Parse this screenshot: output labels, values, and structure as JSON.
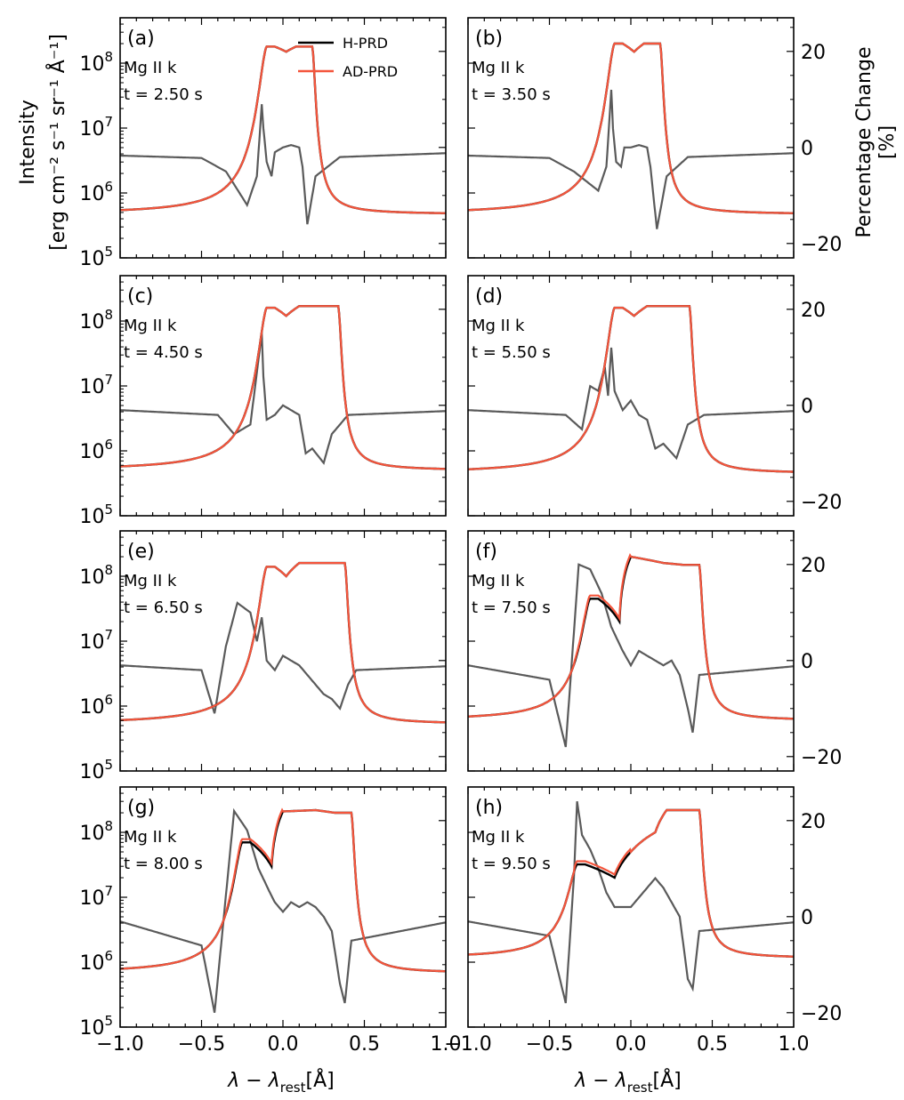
{
  "chart_data": {
    "type": "line",
    "legend": {
      "placement": "top-center of panel (a)",
      "entries": [
        {
          "label": "H-PRD",
          "color": "#000000"
        },
        {
          "label": "AD-PRD",
          "color": "#f4553c"
        }
      ]
    },
    "colors": {
      "h_prd": "#000000",
      "ad_prd": "#f4553c",
      "percent_change": "#5a5a5a"
    },
    "xlabel_main": "λ − λ",
    "xlabel_sub": "rest",
    "xlabel_unit": "[Å]",
    "ylabel_left_line1": "Intensity",
    "ylabel_left_line2": "[erg cm⁻² s⁻¹ sr⁻¹ Å⁻¹]",
    "ylabel_right_line1": "Percentage Change",
    "ylabel_right_line2": "[%]",
    "x_ticks": [
      "−1.0",
      "−0.5",
      "0.0",
      "0.5",
      "1.0"
    ],
    "x_range": [
      -1.0,
      1.0
    ],
    "y_left_scale": "log",
    "y_left_range": [
      100000,
      500000000
    ],
    "y_left_ticks": [
      100000,
      1000000,
      10000000,
      100000000
    ],
    "y_right_range": [
      -23,
      27
    ],
    "y_right_ticks": [
      "−20",
      "0",
      "20"
    ],
    "panels": [
      {
        "label": "(a)",
        "line": "Mg II k",
        "time": "t = 2.50 s",
        "core": [
          [
            -0.05,
            180000000.0
          ],
          [
            0.02,
            150000000.0
          ],
          [
            0.08,
            180000000.0
          ]
        ],
        "cont_left": 470000.0,
        "cont_right": 470000.0,
        "wing_edge": 0.14,
        "pct": [
          [
            -1.0,
            -1.7
          ],
          [
            -0.5,
            -2.2
          ],
          [
            -0.35,
            -5
          ],
          [
            -0.22,
            -12
          ],
          [
            -0.16,
            -6
          ],
          [
            -0.13,
            9
          ],
          [
            -0.12,
            4
          ],
          [
            -0.1,
            -3
          ],
          [
            -0.07,
            -6
          ],
          [
            -0.05,
            -1
          ],
          [
            0.0,
            0
          ],
          [
            0.05,
            0.5
          ],
          [
            0.1,
            0
          ],
          [
            0.12,
            -4
          ],
          [
            0.15,
            -16
          ],
          [
            0.2,
            -6
          ],
          [
            0.35,
            -2
          ],
          [
            1.0,
            -1.2
          ]
        ]
      },
      {
        "label": "(b)",
        "line": "Mg II k",
        "time": "t = 3.50 s",
        "core": [
          [
            -0.05,
            200000000.0
          ],
          [
            0.02,
            150000000.0
          ],
          [
            0.08,
            200000000.0
          ]
        ],
        "cont_left": 470000.0,
        "cont_right": 470000.0,
        "wing_edge": 0.14,
        "pct": [
          [
            -1.0,
            -1.7
          ],
          [
            -0.5,
            -2.2
          ],
          [
            -0.35,
            -5
          ],
          [
            -0.2,
            -9
          ],
          [
            -0.15,
            -4
          ],
          [
            -0.12,
            12
          ],
          [
            -0.11,
            4
          ],
          [
            -0.09,
            -3
          ],
          [
            -0.06,
            -4
          ],
          [
            -0.04,
            0
          ],
          [
            0.0,
            0
          ],
          [
            0.05,
            0.5
          ],
          [
            0.1,
            0
          ],
          [
            0.12,
            -4
          ],
          [
            0.16,
            -17
          ],
          [
            0.22,
            -6
          ],
          [
            0.35,
            -2
          ],
          [
            1.0,
            -1.2
          ]
        ]
      },
      {
        "label": "(c)",
        "line": "Mg II k",
        "time": "t = 4.50 s",
        "core": [
          [
            -0.05,
            160000000.0
          ],
          [
            0.02,
            120000000.0
          ],
          [
            0.1,
            170000000.0
          ]
        ],
        "cont_left": 500000.0,
        "cont_right": 500000.0,
        "wing_edge": 0.3,
        "pct": [
          [
            -1.0,
            -1
          ],
          [
            -0.4,
            -2
          ],
          [
            -0.3,
            -6
          ],
          [
            -0.2,
            -4
          ],
          [
            -0.13,
            15
          ],
          [
            -0.12,
            6
          ],
          [
            -0.1,
            -3
          ],
          [
            -0.05,
            -2
          ],
          [
            0.0,
            0
          ],
          [
            0.05,
            -1
          ],
          [
            0.1,
            -2
          ],
          [
            0.14,
            -10
          ],
          [
            0.18,
            -9
          ],
          [
            0.25,
            -12
          ],
          [
            0.3,
            -6
          ],
          [
            0.4,
            -2
          ],
          [
            1.0,
            -1.2
          ]
        ]
      },
      {
        "label": "(d)",
        "line": "Mg II k",
        "time": "t = 5.50 s",
        "core": [
          [
            -0.05,
            160000000.0
          ],
          [
            0.02,
            120000000.0
          ],
          [
            0.1,
            170000000.0
          ]
        ],
        "cont_left": 450000.0,
        "cont_right": 450000.0,
        "wing_edge": 0.32,
        "pct": [
          [
            -1.0,
            -1
          ],
          [
            -0.4,
            -2
          ],
          [
            -0.3,
            -5
          ],
          [
            -0.25,
            4
          ],
          [
            -0.2,
            3
          ],
          [
            -0.16,
            8
          ],
          [
            -0.14,
            2
          ],
          [
            -0.12,
            12
          ],
          [
            -0.1,
            3
          ],
          [
            -0.05,
            -1
          ],
          [
            0.0,
            1
          ],
          [
            0.05,
            -2
          ],
          [
            0.1,
            -3
          ],
          [
            0.15,
            -9
          ],
          [
            0.2,
            -8
          ],
          [
            0.28,
            -11
          ],
          [
            0.35,
            -4
          ],
          [
            0.45,
            -2
          ],
          [
            1.0,
            -1.2
          ]
        ]
      },
      {
        "label": "(e)",
        "line": "Mg II k",
        "time": "t = 6.50 s",
        "core": [
          [
            -0.05,
            140000000.0
          ],
          [
            0.02,
            100000000.0
          ],
          [
            0.1,
            160000000.0
          ]
        ],
        "cont_left": 530000.0,
        "cont_right": 530000.0,
        "wing_edge": 0.34,
        "pct": [
          [
            -1.0,
            -1
          ],
          [
            -0.5,
            -2
          ],
          [
            -0.42,
            -11
          ],
          [
            -0.35,
            3
          ],
          [
            -0.28,
            12
          ],
          [
            -0.2,
            10
          ],
          [
            -0.16,
            4
          ],
          [
            -0.13,
            9
          ],
          [
            -0.1,
            0
          ],
          [
            -0.05,
            -2
          ],
          [
            0.0,
            1
          ],
          [
            0.05,
            0
          ],
          [
            0.1,
            -1
          ],
          [
            0.15,
            -3
          ],
          [
            0.2,
            -5
          ],
          [
            0.25,
            -7
          ],
          [
            0.3,
            -8
          ],
          [
            0.35,
            -10
          ],
          [
            0.4,
            -5
          ],
          [
            0.45,
            -2
          ],
          [
            1.0,
            -1.2
          ]
        ]
      },
      {
        "label": "(f)",
        "line": "Mg II k",
        "time": "t = 7.50 s",
        "core": [
          [
            -0.2,
            45000000.0
          ],
          [
            -0.07,
            20000000.0
          ],
          [
            0.0,
            200000000.0
          ],
          [
            0.2,
            160000000.0
          ],
          [
            0.32,
            150000000.0
          ]
        ],
        "cont_left": 600000.0,
        "cont_right": 600000.0,
        "wing_edge": 0.38,
        "pct": [
          [
            -1.0,
            -1
          ],
          [
            -0.5,
            -4
          ],
          [
            -0.4,
            -18
          ],
          [
            -0.32,
            20
          ],
          [
            -0.25,
            19
          ],
          [
            -0.18,
            14
          ],
          [
            -0.12,
            7
          ],
          [
            -0.05,
            2
          ],
          [
            0.0,
            -1
          ],
          [
            0.05,
            2
          ],
          [
            0.1,
            1
          ],
          [
            0.15,
            0
          ],
          [
            0.2,
            -1
          ],
          [
            0.25,
            0
          ],
          [
            0.3,
            -3
          ],
          [
            0.35,
            -10
          ],
          [
            0.38,
            -15
          ],
          [
            0.42,
            -3
          ],
          [
            1.0,
            -1.2
          ]
        ]
      },
      {
        "label": "(g)",
        "line": "Mg II k",
        "time": "t = 8.00 s",
        "core": [
          [
            -0.2,
            70000000.0
          ],
          [
            -0.07,
            30000000.0
          ],
          [
            0.0,
            210000000.0
          ],
          [
            0.2,
            220000000.0
          ],
          [
            0.32,
            200000000.0
          ]
        ],
        "cont_left": 680000.0,
        "cont_right": 680000.0,
        "wing_edge": 0.38,
        "pct": [
          [
            -1.0,
            -1
          ],
          [
            -0.5,
            -6
          ],
          [
            -0.42,
            -20
          ],
          [
            -0.3,
            22
          ],
          [
            -0.22,
            18
          ],
          [
            -0.15,
            10
          ],
          [
            -0.08,
            5
          ],
          [
            -0.05,
            3
          ],
          [
            0.0,
            1
          ],
          [
            0.05,
            3
          ],
          [
            0.1,
            2
          ],
          [
            0.15,
            3
          ],
          [
            0.2,
            2
          ],
          [
            0.25,
            0
          ],
          [
            0.3,
            -3
          ],
          [
            0.35,
            -14
          ],
          [
            0.38,
            -18
          ],
          [
            0.42,
            -5
          ],
          [
            1.0,
            -1.2
          ]
        ]
      },
      {
        "label": "(h)",
        "line": "Mg II k",
        "time": "t = 9.50 s",
        "core": [
          [
            -0.28,
            32000000.0
          ],
          [
            -0.1,
            20000000.0
          ],
          [
            0.0,
            50000000.0
          ],
          [
            0.15,
            100000000.0
          ],
          [
            0.22,
            220000000.0
          ],
          [
            0.32,
            220000000.0
          ]
        ],
        "cont_left": 1150000.0,
        "cont_right": 1150000.0,
        "wing_edge": 0.38,
        "pct": [
          [
            -1.0,
            -1
          ],
          [
            -0.5,
            -4
          ],
          [
            -0.4,
            -18
          ],
          [
            -0.35,
            8
          ],
          [
            -0.33,
            24
          ],
          [
            -0.3,
            17
          ],
          [
            -0.25,
            14
          ],
          [
            -0.2,
            10
          ],
          [
            -0.15,
            5
          ],
          [
            -0.1,
            2
          ],
          [
            -0.05,
            2
          ],
          [
            0.0,
            2
          ],
          [
            0.05,
            4
          ],
          [
            0.1,
            6
          ],
          [
            0.15,
            8
          ],
          [
            0.2,
            6
          ],
          [
            0.25,
            3
          ],
          [
            0.3,
            0
          ],
          [
            0.35,
            -13
          ],
          [
            0.38,
            -15
          ],
          [
            0.42,
            -3
          ],
          [
            1.0,
            -1.2
          ]
        ]
      }
    ]
  }
}
